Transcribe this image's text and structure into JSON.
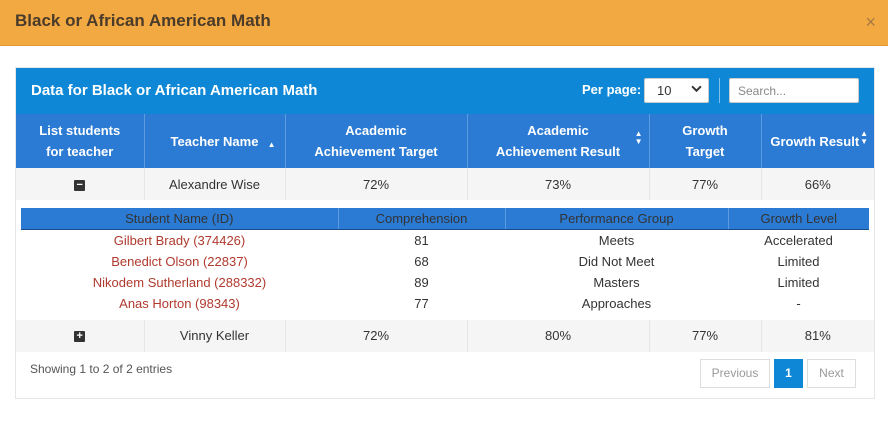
{
  "modal": {
    "title": "Black or African American Math",
    "close": "×"
  },
  "panel": {
    "title": "Data for Black or African American Math",
    "per_page_label": "Per page:",
    "per_page_value": "10",
    "search_placeholder": "Search..."
  },
  "columns": [
    "List students for teacher",
    "Teacher Name",
    "Academic Achievement Target",
    "Academic Achievement Result",
    "Growth Target",
    "Growth Result"
  ],
  "rows": [
    {
      "toggle": "−",
      "teacher": "Alexandre Wise",
      "aa_target": "72%",
      "aa_result": "73%",
      "growth_target": "77%",
      "growth_result": "66%"
    },
    {
      "toggle": "+",
      "teacher": "Vinny Keller",
      "aa_target": "72%",
      "aa_result": "80%",
      "growth_target": "77%",
      "growth_result": "81%"
    }
  ],
  "detail": {
    "columns": [
      "Student Name (ID)",
      "Comprehension",
      "Performance Group",
      "Growth Level"
    ],
    "students": [
      {
        "name": "Gilbert Brady (374426)",
        "comprehension": "81",
        "group": "Meets",
        "growth": "Accelerated"
      },
      {
        "name": "Benedict Olson (22837)",
        "comprehension": "68",
        "group": "Did Not Meet",
        "growth": "Limited"
      },
      {
        "name": "Nikodem Sutherland (288332)",
        "comprehension": "89",
        "group": "Masters",
        "growth": "Limited"
      },
      {
        "name": "Anas Horton (98343)",
        "comprehension": "77",
        "group": "Approaches",
        "growth": "-"
      }
    ]
  },
  "footer": {
    "showing": "Showing 1 to 2 of 2 entries",
    "previous": "Previous",
    "page": "1",
    "next": "Next"
  },
  "colors": {
    "modal_header": "#f3a942",
    "panel_header": "#0e88d6",
    "table_header": "#2b7bd4",
    "student_link": "#b03a2e"
  }
}
